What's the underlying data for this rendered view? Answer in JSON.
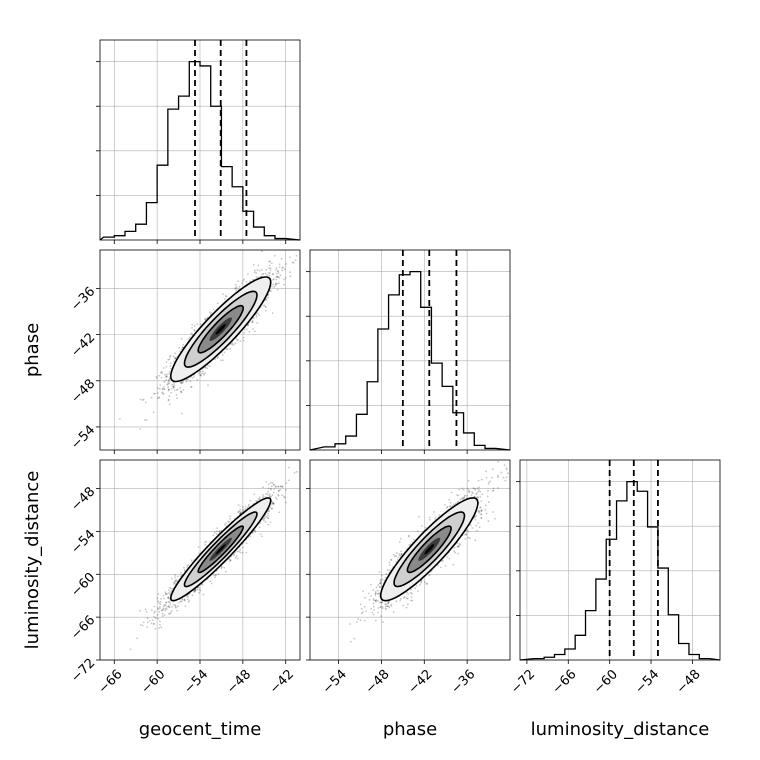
{
  "chart_data": {
    "type": "corner",
    "parameters": [
      "geocent_time",
      "phase",
      "luminosity_distance"
    ],
    "grid": true,
    "quantile_lines": "dashed",
    "panels": [
      {
        "id": "hist-geocent_time",
        "type": "histogram",
        "param": "geocent_time",
        "xlim": [
          -68,
          -40
        ],
        "bin_width": 1.5,
        "bin_start": -67.5,
        "counts": [
          2,
          3,
          6,
          11,
          26,
          52,
          91,
          100,
          124,
          121,
          93,
          51,
          37,
          20,
          9,
          3,
          1
        ],
        "quantiles": [
          -54.7,
          -51.1,
          -47.5
        ]
      },
      {
        "id": "hist-phase",
        "type": "histogram",
        "param": "phase",
        "xlim": [
          -58,
          -30
        ],
        "bin_width": 1.5,
        "bin_start": -56.0,
        "counts": [
          2,
          4,
          9,
          23,
          44,
          78,
          100,
          113,
          115,
          92,
          56,
          41,
          24,
          11,
          3,
          1
        ],
        "quantiles": [
          -45.0,
          -41.3,
          -37.5
        ]
      },
      {
        "id": "hist-luminosity_distance",
        "type": "histogram",
        "param": "luminosity_distance",
        "xlim": [
          -73,
          -44
        ],
        "bin_width": 1.5,
        "bin_start": -71.0,
        "counts": [
          1,
          2,
          4,
          8,
          18,
          36,
          59,
          88,
          116,
          130,
          123,
          97,
          67,
          33,
          12,
          4,
          1
        ],
        "quantiles": [
          -60.0,
          -56.5,
          -53.0
        ]
      },
      {
        "id": "scatter-phase-vs-geocent_time",
        "type": "2d-density",
        "x": "geocent_time",
        "y": "phase",
        "xlim": [
          -68,
          -40
        ],
        "ylim": [
          -57,
          -31
        ],
        "mean": [
          -51.1,
          -41.3
        ],
        "sigma": [
          3.5,
          3.4
        ],
        "rho": 0.9
      },
      {
        "id": "scatter-luminosity_distance-vs-geocent_time",
        "type": "2d-density",
        "x": "geocent_time",
        "y": "luminosity_distance",
        "xlim": [
          -68,
          -40
        ],
        "ylim": [
          -72,
          -44
        ],
        "mean": [
          -51.1,
          -56.5
        ],
        "sigma": [
          3.5,
          3.6
        ],
        "rho": 0.95
      },
      {
        "id": "scatter-luminosity_distance-vs-phase",
        "type": "2d-density",
        "x": "phase",
        "y": "luminosity_distance",
        "xlim": [
          -58,
          -30
        ],
        "ylim": [
          -72,
          -44
        ],
        "mean": [
          -41.3,
          -56.5
        ],
        "sigma": [
          3.4,
          3.6
        ],
        "rho": 0.9
      }
    ],
    "ticks": {
      "geocent_time": [
        "−66",
        "−60",
        "−54",
        "−48",
        "−42"
      ],
      "geocent_time_values": [
        -66,
        -60,
        -54,
        -48,
        -42
      ],
      "phase": [
        "−54",
        "−48",
        "−42",
        "−36"
      ],
      "phase_values": [
        -54,
        -48,
        -42,
        -36
      ],
      "luminosity_distance": [
        "−72",
        "−66",
        "−60",
        "−54",
        "−48"
      ],
      "luminosity_distance_values": [
        -72,
        -66,
        -60,
        -54,
        -48
      ]
    }
  }
}
